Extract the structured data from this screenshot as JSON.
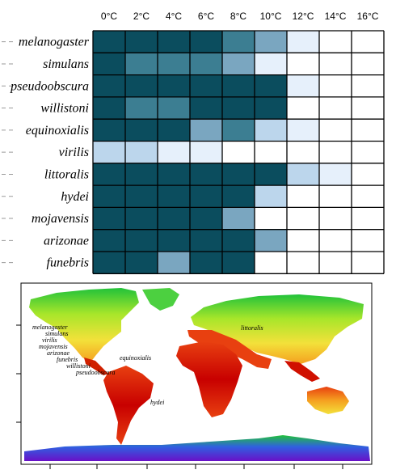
{
  "chart_data": [
    {
      "type": "heatmap",
      "title": "",
      "xlabel": "",
      "ylabel": "",
      "columns": [
        "0°C",
        "2°C",
        "4°C",
        "6°C",
        "8°C",
        "10°C",
        "12°C",
        "14°C",
        "16°C"
      ],
      "rows": [
        "melanogaster",
        "simulans",
        "pseudoobscura",
        "willistoni",
        "equinoxialis",
        "virilis",
        "littoralis",
        "hydei",
        "mojavensis",
        "arizonae",
        "funebris"
      ],
      "color_scale": [
        "#ffffff",
        "#e6f0fb",
        "#bcd6ec",
        "#7aa6c0",
        "#3c7e92",
        "#0b4d5e"
      ],
      "values": [
        [
          5,
          5,
          5,
          5,
          4,
          3,
          1,
          0,
          0
        ],
        [
          5,
          4,
          4,
          4,
          3,
          1,
          0,
          0,
          0
        ],
        [
          5,
          5,
          5,
          5,
          5,
          5,
          1,
          0,
          0
        ],
        [
          5,
          4,
          4,
          5,
          5,
          5,
          0,
          0,
          0
        ],
        [
          5,
          5,
          5,
          3,
          4,
          2,
          1,
          0,
          0
        ],
        [
          2,
          2,
          1,
          1,
          0,
          0,
          0,
          0,
          0
        ],
        [
          5,
          5,
          5,
          5,
          5,
          5,
          2,
          1,
          0
        ],
        [
          5,
          5,
          5,
          5,
          5,
          2,
          0,
          0,
          0
        ],
        [
          5,
          5,
          5,
          5,
          3,
          0,
          0,
          0,
          0
        ],
        [
          5,
          5,
          5,
          5,
          5,
          3,
          0,
          0,
          0
        ],
        [
          5,
          5,
          3,
          5,
          5,
          0,
          0,
          0,
          0
        ]
      ]
    },
    {
      "type": "map",
      "colors": [
        "#21c23a",
        "#a8e62a",
        "#f3e13a",
        "#f5a020",
        "#e84010",
        "#c80000",
        "#1a20d8",
        "#6a10c8"
      ],
      "labels": [
        "melanogaster",
        "simulans",
        "virilis",
        "mojavensis",
        "arizonae",
        "funebris",
        "willistoni",
        "pseudoobscura",
        "equinoxialis",
        "littoralis",
        "hydei"
      ]
    }
  ]
}
